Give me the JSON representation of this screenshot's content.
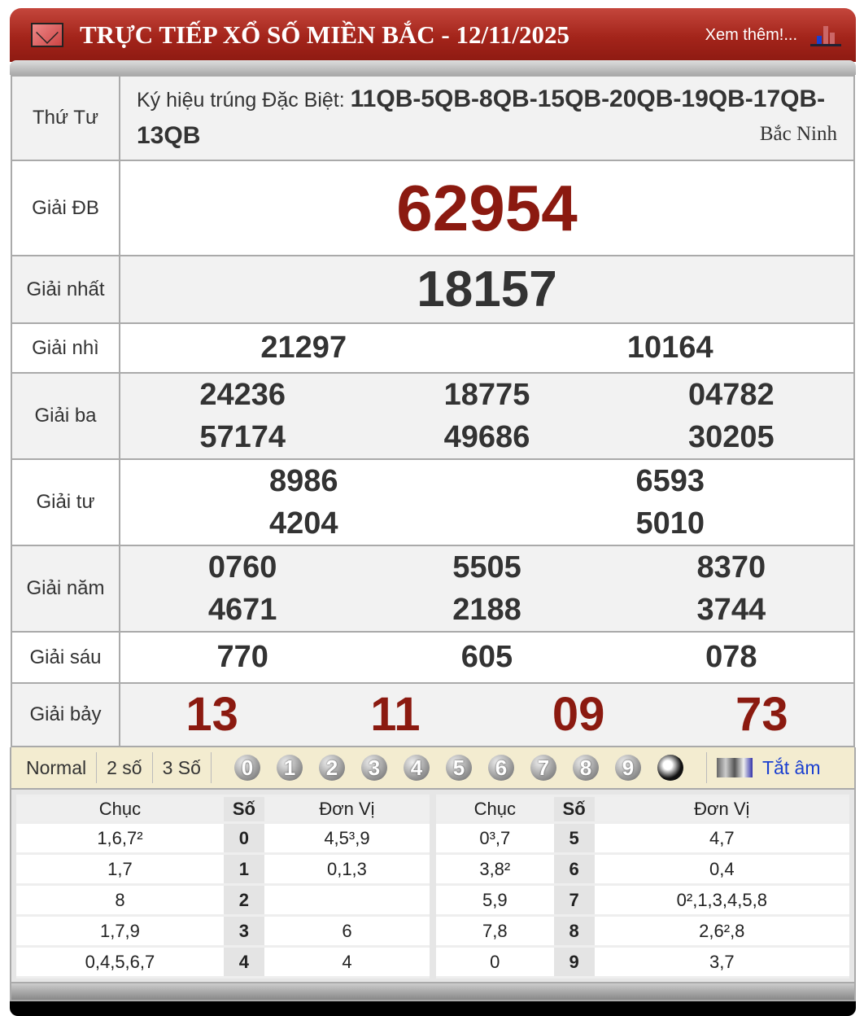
{
  "header": {
    "title": "TRỰC TIẾP XỔ SỐ MIỀN BẮC - 12/11/2025",
    "more": "Xem thêm!..."
  },
  "info": {
    "day": "Thứ Tư",
    "code_label": "Ký hiệu trúng Đặc Biệt: ",
    "codes": "11QB-5QB-8QB-15QB-20QB-19QB-17QB-13QB",
    "province": "Bắc Ninh"
  },
  "prizes": [
    {
      "label": "Giải ĐB",
      "numbers": [
        "62954"
      ]
    },
    {
      "label": "Giải nhất",
      "numbers": [
        "18157"
      ]
    },
    {
      "label": "Giải nhì",
      "numbers": [
        "21297",
        "10164"
      ]
    },
    {
      "label": "Giải ba",
      "numbers": [
        "24236",
        "18775",
        "04782",
        "57174",
        "49686",
        "30205"
      ]
    },
    {
      "label": "Giải tư",
      "numbers": [
        "8986",
        "6593",
        "4204",
        "5010"
      ]
    },
    {
      "label": "Giải năm",
      "numbers": [
        "0760",
        "5505",
        "8370",
        "4671",
        "2188",
        "3744"
      ]
    },
    {
      "label": "Giải sáu",
      "numbers": [
        "770",
        "605",
        "078"
      ]
    },
    {
      "label": "Giải bảy",
      "numbers": [
        "13",
        "11",
        "09",
        "73"
      ]
    }
  ],
  "colors": {
    "accent": "#8b1a10",
    "header": "#a3241a",
    "link": "#1a3fd0"
  },
  "toolbar": {
    "modes": [
      "Normal",
      "2 số",
      "3 Số"
    ],
    "digits": [
      "0",
      "1",
      "2",
      "3",
      "4",
      "5",
      "6",
      "7",
      "8",
      "9"
    ],
    "mute": "Tắt âm"
  },
  "loto": {
    "headers": [
      "Chục",
      "Số",
      "Đơn Vị"
    ],
    "rows": [
      {
        "chuc": "1,6,7²",
        "so": "0",
        "dv": "4,5³,9"
      },
      {
        "chuc": "1,7",
        "so": "1",
        "dv": "0,1,3"
      },
      {
        "chuc": "8",
        "so": "2",
        "dv": ""
      },
      {
        "chuc": "1,7,9",
        "so": "3",
        "dv": "6"
      },
      {
        "chuc": "0,4,5,6,7",
        "so": "4",
        "dv": "4"
      },
      {
        "chuc": "0³,7",
        "so": "5",
        "dv": "4,7"
      },
      {
        "chuc": "3,8²",
        "so": "6",
        "dv": "0,4"
      },
      {
        "chuc": "5,9",
        "so": "7",
        "dv": "0²,1,3,4,5,8"
      },
      {
        "chuc": "7,8",
        "so": "8",
        "dv": "2,6²,8"
      },
      {
        "chuc": "0",
        "so": "9",
        "dv": "3,7"
      }
    ]
  }
}
